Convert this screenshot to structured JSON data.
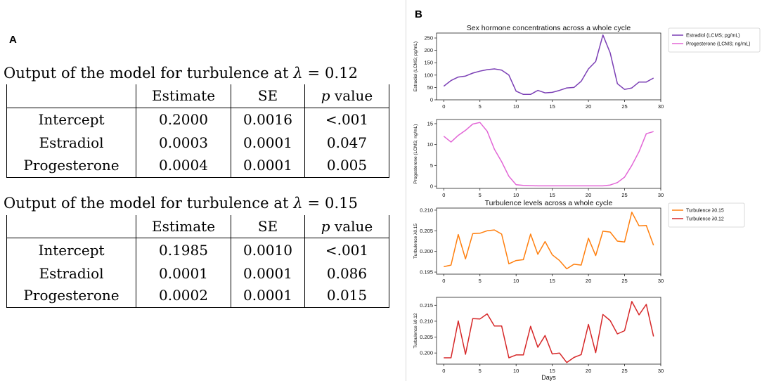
{
  "panel_a": {
    "label": "A",
    "tables": [
      {
        "caption_prefix": "Output of the model for turbulence at ",
        "lambda_symbol": "λ",
        "lambda_value": " = 0.12",
        "headers": [
          "",
          "Estimate",
          "SE",
          "value"
        ],
        "p_letter": "p",
        "rows": [
          {
            "name": "Intercept",
            "estimate": "0.2000",
            "se": "0.0016",
            "p": "<.001"
          },
          {
            "name": "Estradiol",
            "estimate": "0.0003",
            "se": "0.0001",
            "p": "0.047"
          },
          {
            "name": "Progesterone",
            "estimate": "0.0004",
            "se": "0.0001",
            "p": "0.005"
          }
        ]
      },
      {
        "caption_prefix": "Output of the model for turbulence at ",
        "lambda_symbol": "λ",
        "lambda_value": " = 0.15",
        "headers": [
          "",
          "Estimate",
          "SE",
          "value"
        ],
        "p_letter": "p",
        "rows": [
          {
            "name": "Intercept",
            "estimate": "0.1985",
            "se": "0.0010",
            "p": "<.001"
          },
          {
            "name": "Estradiol",
            "estimate": "0.0001",
            "se": "0.0001",
            "p": "0.086"
          },
          {
            "name": "Progesterone",
            "estimate": "0.0002",
            "se": "0.0001",
            "p": "0.015"
          }
        ]
      }
    ]
  },
  "panel_b": {
    "label": "B",
    "x_label": "Days"
  },
  "chart_data": [
    {
      "type": "line",
      "title": "Sex hormone concentrations across a whole cycle",
      "ylabel": "Estradiol (LCMS; pg/mL)",
      "xlabel": "",
      "xlim": [
        -1,
        30
      ],
      "ylim": [
        0,
        270
      ],
      "xticks": [
        0,
        5,
        10,
        15,
        20,
        25,
        30
      ],
      "yticks": [
        0,
        50,
        100,
        150,
        200,
        250
      ],
      "ytick_labels": [
        "0",
        "50",
        "100",
        "150",
        "200",
        "250"
      ],
      "legend": [
        "Estradiol (LCMS; pg/mL)",
        "Progesterone (LCMS; ng/mL)"
      ],
      "legend_colors": [
        "#7b3fb5",
        "#e266d6"
      ],
      "series": [
        {
          "name": "Estradiol (LCMS; pg/mL)",
          "color": "#7b3fb5",
          "x": [
            0,
            1,
            2,
            3,
            4,
            5,
            6,
            7,
            8,
            9,
            10,
            11,
            12,
            13,
            14,
            15,
            16,
            17,
            18,
            19,
            20,
            21,
            22,
            23,
            24,
            25,
            26,
            27,
            28,
            29
          ],
          "values": [
            55,
            78,
            92,
            96,
            108,
            116,
            122,
            125,
            120,
            100,
            35,
            22,
            22,
            38,
            28,
            30,
            38,
            48,
            50,
            75,
            125,
            155,
            262,
            190,
            65,
            42,
            48,
            72,
            72,
            88
          ]
        }
      ]
    },
    {
      "type": "line",
      "title": "",
      "ylabel": "Progesterone (LCMS; ng/mL)",
      "xlabel": "",
      "xlim": [
        -1,
        30
      ],
      "ylim": [
        -0.5,
        16
      ],
      "xticks": [
        0,
        5,
        10,
        15,
        20,
        25,
        30
      ],
      "yticks": [
        0,
        5,
        10,
        15
      ],
      "ytick_labels": [
        "0",
        "5",
        "10",
        "15"
      ],
      "series": [
        {
          "name": "Progesterone (LCMS; ng/mL)",
          "color": "#e266d6",
          "x": [
            0,
            1,
            2,
            3,
            4,
            5,
            6,
            7,
            8,
            9,
            10,
            11,
            12,
            13,
            14,
            15,
            16,
            17,
            18,
            19,
            20,
            21,
            22,
            23,
            24,
            25,
            26,
            27,
            28,
            29
          ],
          "values": [
            12,
            10.6,
            12.2,
            13.4,
            14.9,
            15.3,
            13.2,
            8.9,
            5.9,
            2.4,
            0.4,
            0.2,
            0.15,
            0.1,
            0.1,
            0.1,
            0.1,
            0.1,
            0.1,
            0.1,
            0.1,
            0.1,
            0.1,
            0.3,
            0.9,
            2.2,
            5,
            8.3,
            12.6,
            13.1
          ]
        }
      ]
    },
    {
      "type": "line",
      "title": "Turbulence levels across a whole cycle",
      "ylabel": "Turbulence λ0.15",
      "xlabel": "",
      "xlim": [
        -1,
        30
      ],
      "ylim": [
        0.1945,
        0.2105
      ],
      "xticks": [
        0,
        5,
        10,
        15,
        20,
        25,
        30
      ],
      "yticks": [
        0.195,
        0.2,
        0.205,
        0.21
      ],
      "ytick_labels": [
        "0.195",
        "0.200",
        "0.205",
        "0.210"
      ],
      "legend": [
        "Turbulence λ0.15",
        "Turbulence λ0.12"
      ],
      "legend_colors": [
        "#ff7f0e",
        "#d62728"
      ],
      "series": [
        {
          "name": "Turbulence λ0.15",
          "color": "#ff7f0e",
          "x": [
            0,
            1,
            2,
            3,
            4,
            5,
            6,
            7,
            8,
            9,
            10,
            11,
            12,
            13,
            14,
            15,
            16,
            17,
            18,
            19,
            20,
            21,
            22,
            23,
            24,
            25,
            26,
            27,
            28,
            29
          ],
          "values": [
            0.1963,
            0.1967,
            0.2041,
            0.1982,
            0.2043,
            0.2044,
            0.205,
            0.2052,
            0.2042,
            0.197,
            0.1978,
            0.198,
            0.2042,
            0.1993,
            0.2024,
            0.1992,
            0.1978,
            0.1958,
            0.1969,
            0.1967,
            0.2032,
            0.199,
            0.2049,
            0.2047,
            0.2025,
            0.2023,
            0.2095,
            0.2062,
            0.2063,
            0.2015
          ]
        }
      ]
    },
    {
      "type": "line",
      "title": "",
      "ylabel": "Turbulence λ0.12",
      "xlabel": "Days",
      "xlim": [
        -1,
        30
      ],
      "ylim": [
        0.1965,
        0.2175
      ],
      "xticks": [
        0,
        5,
        10,
        15,
        20,
        25,
        30
      ],
      "yticks": [
        0.2,
        0.205,
        0.21,
        0.215
      ],
      "ytick_labels": [
        "0.200",
        "0.205",
        "0.210",
        "0.215"
      ],
      "series": [
        {
          "name": "Turbulence λ0.12",
          "color": "#d62728",
          "x": [
            0,
            1,
            2,
            3,
            4,
            5,
            6,
            7,
            8,
            9,
            10,
            11,
            12,
            13,
            14,
            15,
            16,
            17,
            18,
            19,
            20,
            21,
            22,
            23,
            24,
            25,
            26,
            27,
            28,
            29
          ],
          "values": [
            0.1985,
            0.1985,
            0.2101,
            0.1996,
            0.2108,
            0.2107,
            0.2123,
            0.2085,
            0.2085,
            0.1985,
            0.1994,
            0.1994,
            0.2084,
            0.2018,
            0.2055,
            0.1997,
            0.2,
            0.197,
            0.1986,
            0.1995,
            0.209,
            0.2001,
            0.2121,
            0.2102,
            0.206,
            0.207,
            0.2162,
            0.212,
            0.2153,
            0.2052
          ]
        }
      ]
    }
  ]
}
